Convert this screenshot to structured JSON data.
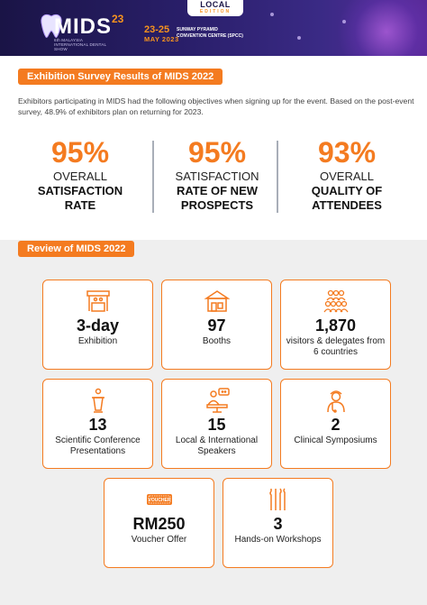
{
  "header": {
    "logo": "MIDS",
    "logo_super": "23",
    "logo_sub": "6th MALAYSIA INTERNATIONAL DENTAL SHOW",
    "date_range": "23-25",
    "date_month": "MAY 2023",
    "venue": "SUNWAY PYRAMID CONVENTION CENTRE (SPCC)",
    "badge_line1": "LOCAL",
    "badge_line2": "EDITION"
  },
  "survey": {
    "title": "Exhibition Survey Results of MIDS 2022",
    "intro": "Exhibitors participating in MIDS had the following objectives when signing up for the event. Based on the post-event survey, 48.9% of exhibitors plan on returning for 2023.",
    "stats": [
      {
        "pct": "95%",
        "line1": "OVERALL",
        "line2": "SATISFACTION",
        "line3": "RATE"
      },
      {
        "pct": "95%",
        "line1": "SATISFACTION",
        "line2": "RATE OF NEW",
        "line3": "PROSPECTS"
      },
      {
        "pct": "93%",
        "line1": "OVERALL",
        "line2": "QUALITY OF",
        "line3": "ATTENDEES"
      }
    ]
  },
  "review": {
    "title": "Review of MIDS 2022",
    "cards": [
      {
        "icon": "exhibition-booth-icon",
        "num": "3-day",
        "label": "Exhibition"
      },
      {
        "icon": "booths-icon",
        "num": "97",
        "label": "Booths"
      },
      {
        "icon": "visitors-icon",
        "num": "1,870",
        "label": "visitors & delegates from 6 countries"
      },
      {
        "icon": "podium-icon",
        "num": "13",
        "label": "Scientific Conference Presentations"
      },
      {
        "icon": "speaker-icon",
        "num": "15",
        "label": "Local & International Speakers"
      },
      {
        "icon": "dentist-icon",
        "num": "2",
        "label": "Clinical Symposiums"
      },
      {
        "icon": "voucher-icon",
        "num": "RM250",
        "label": "Voucher Offer",
        "voucher_text": "VOUCHER"
      },
      {
        "icon": "dental-tools-icon",
        "num": "3",
        "label": "Hands-on Workshops"
      }
    ]
  },
  "colors": {
    "accent": "#f47b20",
    "header_dark": "#1a1446",
    "review_bg": "#efefef"
  }
}
